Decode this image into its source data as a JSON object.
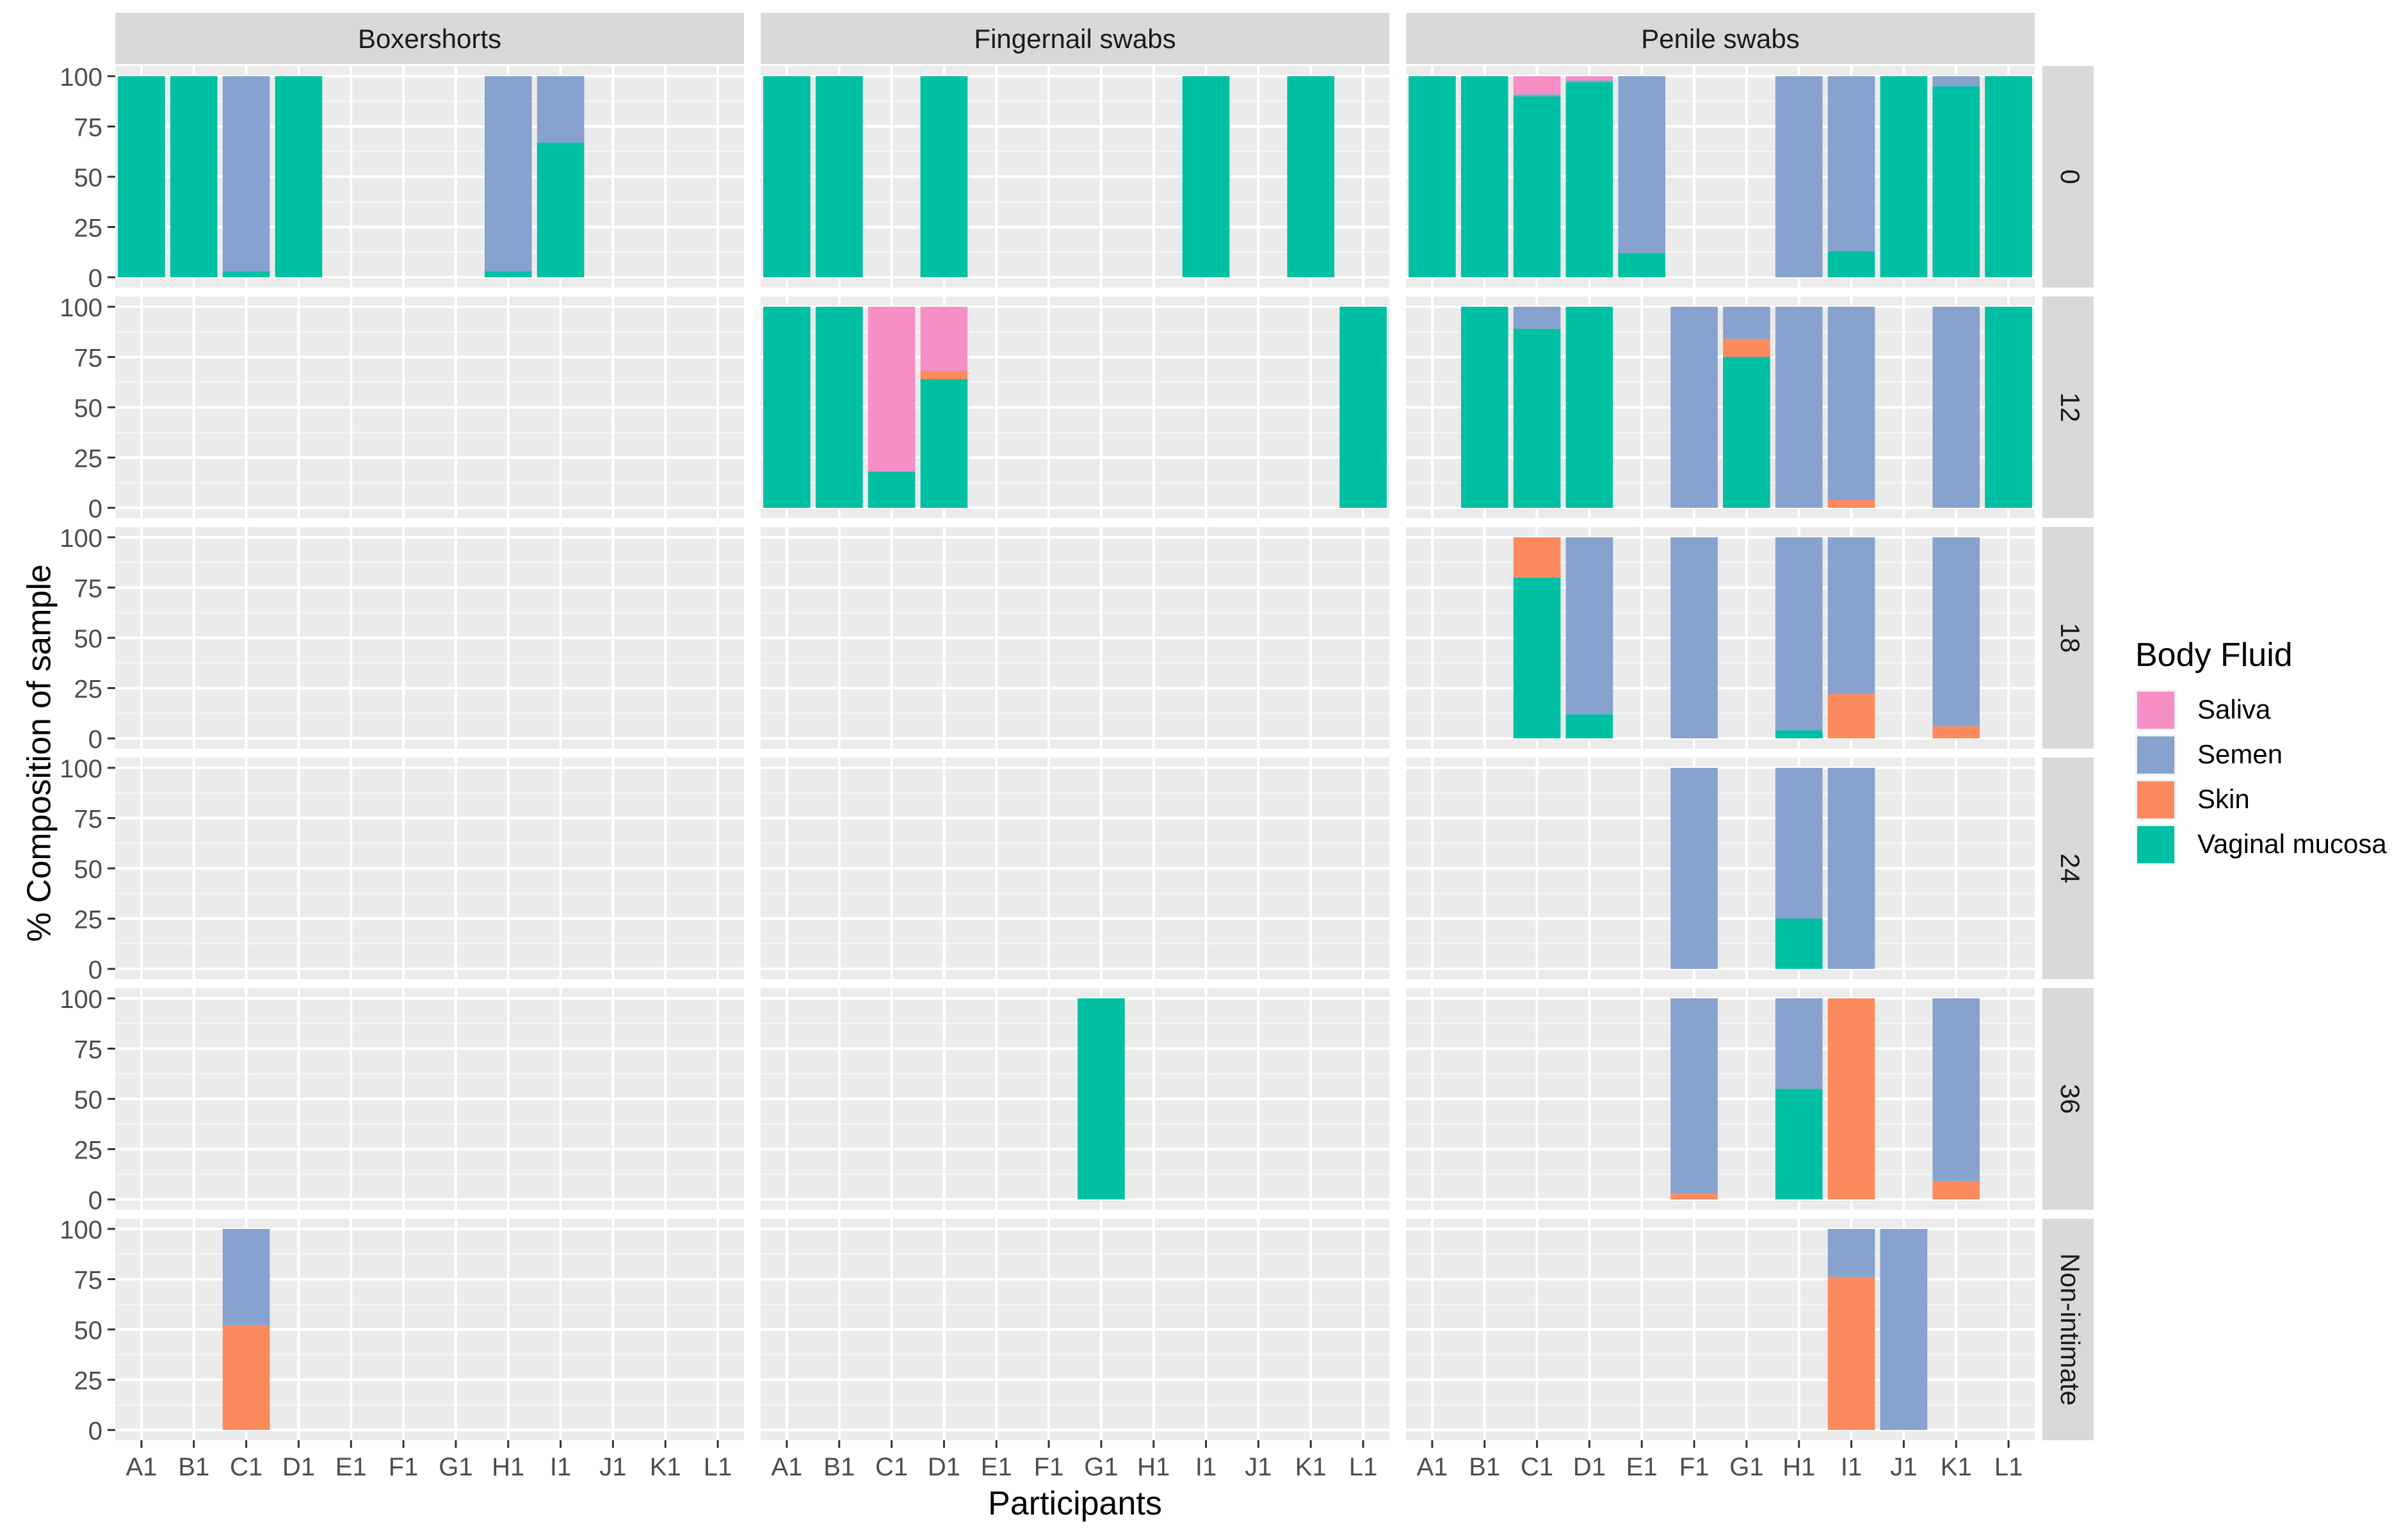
{
  "chart_data": {
    "type": "bar",
    "stacked": true,
    "ylabel": "% Composition of sample",
    "xlabel": "Participants",
    "ylim": [
      0,
      100
    ],
    "yticks": [
      "0",
      "25",
      "50",
      "75",
      "100"
    ],
    "ytick_values": [
      0,
      25,
      50,
      75,
      100
    ],
    "categories": [
      "A1",
      "B1",
      "C1",
      "D1",
      "E1",
      "F1",
      "G1",
      "H1",
      "I1",
      "J1",
      "K1",
      "L1"
    ],
    "facet_columns": [
      "Boxershorts",
      "Fingernail swabs",
      "Penile swabs"
    ],
    "facet_rows": [
      "0",
      "12",
      "18",
      "24",
      "36",
      "Non-intimate"
    ],
    "legend": {
      "title": "Body Fluid",
      "position": "right",
      "entries": [
        {
          "name": "Saliva",
          "color": "#F58FC5"
        },
        {
          "name": "Semen",
          "color": "#87A2CF"
        },
        {
          "name": "Skin",
          "color": "#FB8B5E"
        },
        {
          "name": "Vaginal mucosa",
          "color": "#00C0A3"
        }
      ]
    },
    "stack_order_bottom_to_top": [
      "Vaginal mucosa",
      "Skin",
      "Semen",
      "Saliva"
    ],
    "panels": [
      {
        "column": "Boxershorts",
        "row": "0",
        "bars": [
          {
            "category": "A1",
            "Vaginal mucosa": 100
          },
          {
            "category": "B1",
            "Vaginal mucosa": 100
          },
          {
            "category": "C1",
            "Vaginal mucosa": 3,
            "Semen": 97
          },
          {
            "category": "D1",
            "Vaginal mucosa": 100
          },
          {
            "category": "H1",
            "Vaginal mucosa": 3,
            "Semen": 97
          },
          {
            "category": "I1",
            "Vaginal mucosa": 67,
            "Semen": 33
          }
        ]
      },
      {
        "column": "Fingernail swabs",
        "row": "0",
        "bars": [
          {
            "category": "A1",
            "Vaginal mucosa": 100
          },
          {
            "category": "B1",
            "Vaginal mucosa": 100
          },
          {
            "category": "D1",
            "Vaginal mucosa": 100
          },
          {
            "category": "I1",
            "Vaginal mucosa": 100
          },
          {
            "category": "K1",
            "Vaginal mucosa": 100
          }
        ]
      },
      {
        "column": "Penile swabs",
        "row": "0",
        "bars": [
          {
            "category": "A1",
            "Vaginal mucosa": 100
          },
          {
            "category": "B1",
            "Vaginal mucosa": 100
          },
          {
            "category": "C1",
            "Vaginal mucosa": 90,
            "Semen": 1,
            "Saliva": 9
          },
          {
            "category": "D1",
            "Vaginal mucosa": 97,
            "Semen": 1,
            "Saliva": 2
          },
          {
            "category": "E1",
            "Vaginal mucosa": 12,
            "Semen": 88
          },
          {
            "category": "H1",
            "Semen": 100
          },
          {
            "category": "I1",
            "Vaginal mucosa": 13,
            "Semen": 87
          },
          {
            "category": "J1",
            "Vaginal mucosa": 100
          },
          {
            "category": "K1",
            "Vaginal mucosa": 95,
            "Semen": 5
          },
          {
            "category": "L1",
            "Vaginal mucosa": 100
          }
        ]
      },
      {
        "column": "Boxershorts",
        "row": "12",
        "bars": []
      },
      {
        "column": "Fingernail swabs",
        "row": "12",
        "bars": [
          {
            "category": "A1",
            "Vaginal mucosa": 100
          },
          {
            "category": "B1",
            "Vaginal mucosa": 100
          },
          {
            "category": "C1",
            "Vaginal mucosa": 18,
            "Saliva": 82
          },
          {
            "category": "D1",
            "Vaginal mucosa": 64,
            "Skin": 4,
            "Saliva": 32
          },
          {
            "category": "L1",
            "Vaginal mucosa": 100
          }
        ]
      },
      {
        "column": "Penile swabs",
        "row": "12",
        "bars": [
          {
            "category": "B1",
            "Vaginal mucosa": 100
          },
          {
            "category": "C1",
            "Vaginal mucosa": 89,
            "Semen": 11
          },
          {
            "category": "D1",
            "Vaginal mucosa": 100
          },
          {
            "category": "F1",
            "Semen": 100
          },
          {
            "category": "G1",
            "Vaginal mucosa": 75,
            "Skin": 9,
            "Semen": 16
          },
          {
            "category": "H1",
            "Semen": 100
          },
          {
            "category": "I1",
            "Skin": 4,
            "Semen": 96
          },
          {
            "category": "K1",
            "Semen": 100
          },
          {
            "category": "L1",
            "Vaginal mucosa": 100
          }
        ]
      },
      {
        "column": "Boxershorts",
        "row": "18",
        "bars": []
      },
      {
        "column": "Fingernail swabs",
        "row": "18",
        "bars": []
      },
      {
        "column": "Penile swabs",
        "row": "18",
        "bars": [
          {
            "category": "C1",
            "Vaginal mucosa": 80,
            "Skin": 20
          },
          {
            "category": "D1",
            "Vaginal mucosa": 12,
            "Semen": 88
          },
          {
            "category": "F1",
            "Semen": 100
          },
          {
            "category": "H1",
            "Vaginal mucosa": 4,
            "Semen": 96
          },
          {
            "category": "I1",
            "Skin": 22,
            "Semen": 78
          },
          {
            "category": "K1",
            "Skin": 6,
            "Semen": 94
          }
        ]
      },
      {
        "column": "Boxershorts",
        "row": "24",
        "bars": []
      },
      {
        "column": "Fingernail swabs",
        "row": "24",
        "bars": []
      },
      {
        "column": "Penile swabs",
        "row": "24",
        "bars": [
          {
            "category": "F1",
            "Semen": 100
          },
          {
            "category": "H1",
            "Vaginal mucosa": 25,
            "Semen": 75
          },
          {
            "category": "I1",
            "Semen": 100
          }
        ]
      },
      {
        "column": "Boxershorts",
        "row": "36",
        "bars": []
      },
      {
        "column": "Fingernail swabs",
        "row": "36",
        "bars": [
          {
            "category": "G1",
            "Vaginal mucosa": 100
          }
        ]
      },
      {
        "column": "Penile swabs",
        "row": "36",
        "bars": [
          {
            "category": "F1",
            "Skin": 3,
            "Semen": 97
          },
          {
            "category": "H1",
            "Vaginal mucosa": 55,
            "Semen": 45
          },
          {
            "category": "I1",
            "Skin": 100
          },
          {
            "category": "K1",
            "Skin": 9,
            "Semen": 91
          }
        ]
      },
      {
        "column": "Boxershorts",
        "row": "Non-intimate",
        "bars": [
          {
            "category": "C1",
            "Skin": 52,
            "Semen": 48
          }
        ]
      },
      {
        "column": "Fingernail swabs",
        "row": "Non-intimate",
        "bars": []
      },
      {
        "column": "Penile swabs",
        "row": "Non-intimate",
        "bars": [
          {
            "category": "I1",
            "Skin": 76,
            "Semen": 24
          },
          {
            "category": "J1",
            "Semen": 100
          }
        ]
      }
    ]
  }
}
